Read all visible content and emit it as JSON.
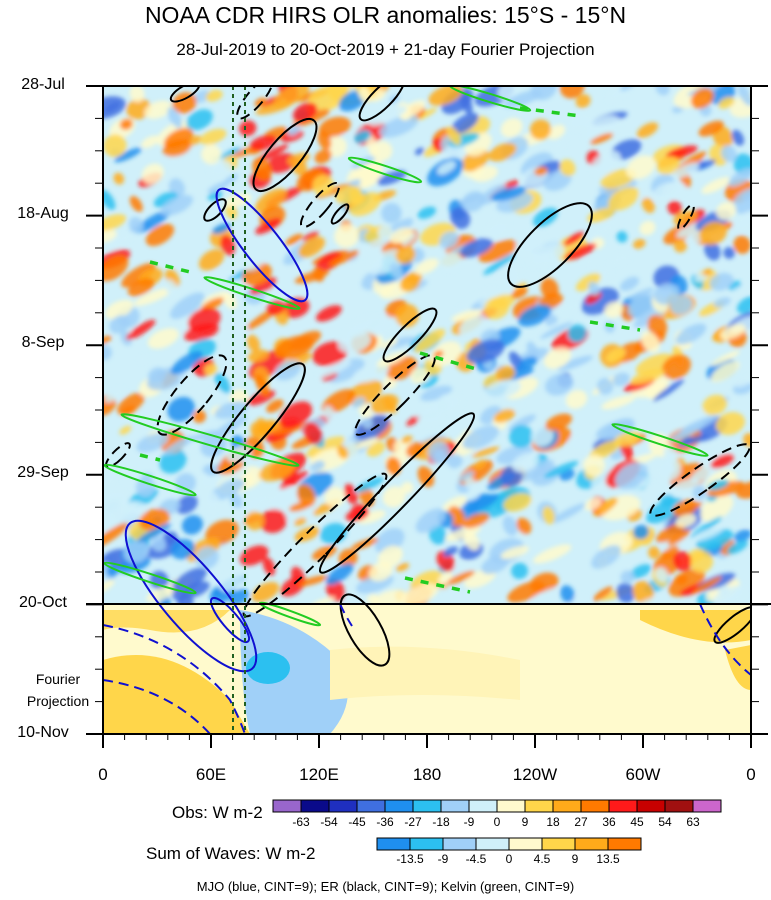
{
  "header": {
    "title": "NOAA CDR HIRS OLR anomalies: 15°S - 15°N",
    "subtitle": "28-Jul-2019 to 20-Oct-2019 + 21-day Fourier Projection"
  },
  "side_label": {
    "line1": "Fourier",
    "line2": "Projection"
  },
  "colorbars": {
    "obs": {
      "title": "Obs: W m-2",
      "colors": [
        "#9966cc",
        "#0a0a8a",
        "#1f2fc0",
        "#3f6fe0",
        "#1f8fef",
        "#2cc0f0",
        "#a0d0f8",
        "#d0f0fa",
        "#fffacd",
        "#ffd64a",
        "#ffaa1a",
        "#ff7a00",
        "#ff1a1a",
        "#c80000",
        "#a01010",
        "#cc66cc"
      ],
      "ticks": [
        "-63",
        "-54",
        "-45",
        "-36",
        "-27",
        "-18",
        "-9",
        "0",
        "9",
        "18",
        "27",
        "36",
        "45",
        "54",
        "63"
      ]
    },
    "waves": {
      "title": "Sum of Waves: W m-2",
      "colors": [
        "#1f8fef",
        "#2cc0f0",
        "#a0d0f8",
        "#d0f0fa",
        "#fffacd",
        "#ffd64a",
        "#ffaa1a",
        "#ff7a00"
      ],
      "ticks": [
        "-13.5",
        "-9",
        "-4.5",
        "0",
        "4.5",
        "9",
        "13.5"
      ]
    }
  },
  "footer": "MJO (blue, CINT=9); ER (black, CINT=9); Kelvin (green, CINT=9)",
  "chart_data": {
    "type": "heatmap",
    "title": "NOAA CDR HIRS OLR anomalies: 15°S - 15°N",
    "subtitle": "28-Jul-2019 to 20-Oct-2019 + 21-day Fourier Projection",
    "x_axis": {
      "ticks": [
        "0",
        "60E",
        "120E",
        "180",
        "120W",
        "60W",
        "0"
      ],
      "range_deg_east": [
        0,
        360
      ]
    },
    "y_axis": {
      "ticks": [
        "28-Jul",
        "18-Aug",
        "8-Sep",
        "29-Sep",
        "20-Oct",
        "10-Nov"
      ],
      "range": [
        "2019-07-28",
        "2019-11-10"
      ],
      "projection_start": "2019-10-20"
    },
    "contours": [
      {
        "name": "MJO",
        "color": "#1010d0",
        "cint": 9
      },
      {
        "name": "ER",
        "color": "#000000",
        "cint": 9
      },
      {
        "name": "Kelvin",
        "color": "#22cc22",
        "cint": 9
      }
    ],
    "reference_longitudes_deg_east": [
      72,
      78
    ]
  }
}
